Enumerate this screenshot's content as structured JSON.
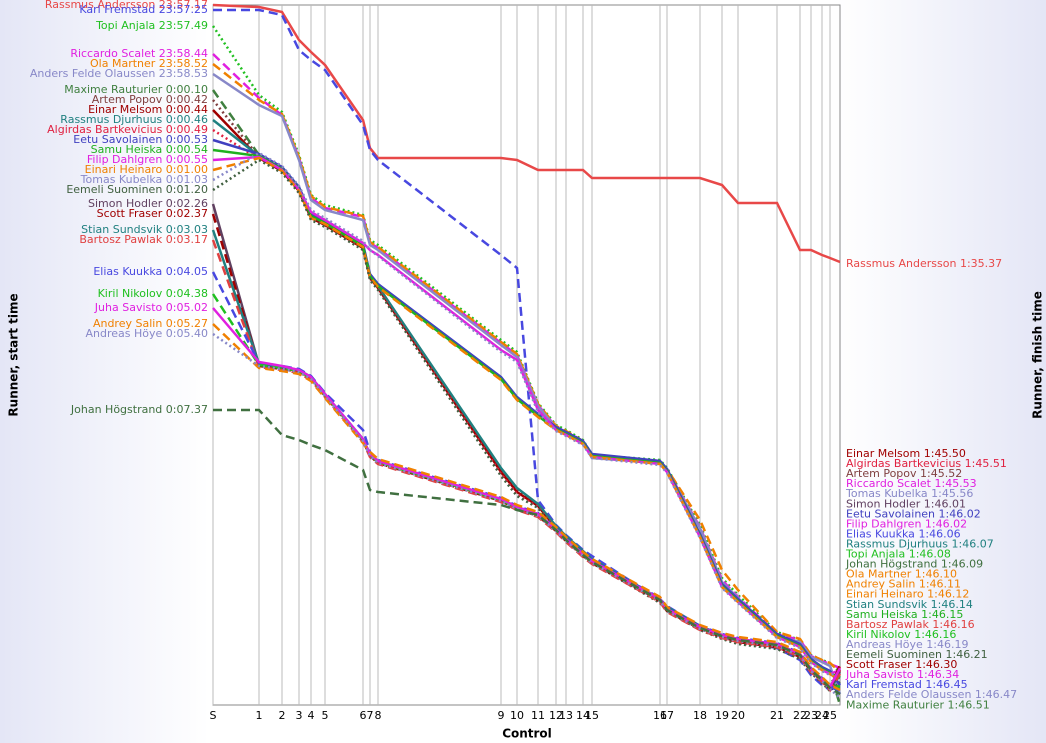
{
  "chart_data": {
    "type": "line",
    "x_label": "Control",
    "y_label": "Runner, start time",
    "y2_label": "Runner, finish time",
    "x": [
      0,
      46,
      69,
      86,
      98,
      112,
      150,
      157,
      165,
      288,
      304,
      325,
      343,
      353,
      370,
      379,
      447,
      454,
      487,
      509,
      525,
      564,
      587,
      598,
      609,
      617,
      627
    ],
    "xlim": [
      0,
      627
    ],
    "ylim": [
      705,
      5
    ],
    "grid": true,
    "xticks": [
      {
        "value": 0,
        "label": "S"
      },
      {
        "value": 46,
        "label": "1"
      },
      {
        "value": 69,
        "label": "2"
      },
      {
        "value": 86,
        "label": "3"
      },
      {
        "value": 98,
        "label": "4"
      },
      {
        "value": 112,
        "label": "5"
      },
      {
        "value": 150,
        "label": "6"
      },
      {
        "value": 157,
        "label": "7"
      },
      {
        "value": 165,
        "label": "8"
      },
      {
        "value": 288,
        "label": "9"
      },
      {
        "value": 304,
        "label": "10"
      },
      {
        "value": 325,
        "label": "11"
      },
      {
        "value": 343,
        "label": "12"
      },
      {
        "value": 353,
        "label": "13"
      },
      {
        "value": 370,
        "label": "14"
      },
      {
        "value": 379,
        "label": "15"
      },
      {
        "value": 447,
        "label": "16"
      },
      {
        "value": 454,
        "label": "17"
      },
      {
        "value": 487,
        "label": "18"
      },
      {
        "value": 509,
        "label": "19"
      },
      {
        "value": 525,
        "label": "20"
      },
      {
        "value": 564,
        "label": "21"
      },
      {
        "value": 587,
        "label": "22"
      },
      {
        "value": 598,
        "label": "23"
      },
      {
        "value": 609,
        "label": "24"
      },
      {
        "value": 617,
        "label": "25"
      }
    ],
    "series": [
      {
        "name": "Rassmus Andersson",
        "start_time": "23:57.17",
        "color": "#e84848",
        "style": "solid",
        "values": [
          5,
          7,
          12,
          40,
          52,
          65,
          120,
          148,
          158,
          158,
          160,
          170,
          170,
          170,
          170,
          178,
          178,
          178,
          178,
          185,
          203,
          203,
          250,
          250,
          255,
          258,
          262
        ]
      },
      {
        "name": "Karl Fremstad",
        "start_time": "23:57.25",
        "color": "#4848e0",
        "style": "dashed",
        "values": [
          10,
          10,
          15,
          50,
          60,
          70,
          125,
          150,
          160,
          255,
          268,
          500,
          525,
          535,
          550,
          556,
          600,
          606,
          626,
          636,
          641,
          648,
          660,
          675,
          685,
          690,
          684
        ]
      },
      {
        "name": "Topi Anjala",
        "start_time": "23:57.49",
        "color": "#22c022",
        "style": "dotted",
        "values": [
          26,
          95,
          112,
          155,
          195,
          205,
          215,
          240,
          245,
          340,
          352,
          403,
          425,
          430,
          440,
          455,
          460,
          468,
          525,
          578,
          595,
          632,
          640,
          655,
          660,
          663,
          672
        ]
      },
      {
        "name": "Riccardo Scalet",
        "start_time": "23:58.44",
        "color": "#e020e0",
        "style": "dashed",
        "values": [
          54,
          98,
          115,
          158,
          198,
          208,
          217,
          243,
          248,
          343,
          355,
          405,
          427,
          432,
          442,
          457,
          462,
          470,
          527,
          580,
          597,
          634,
          640,
          656,
          661,
          664,
          668
        ]
      },
      {
        "name": "Ola Martner",
        "start_time": "23:58.52",
        "color": "#f08000",
        "style": "dashed",
        "values": [
          64,
          100,
          114,
          157,
          196,
          207,
          216,
          242,
          247,
          342,
          354,
          404,
          426,
          431,
          441,
          455,
          461,
          469,
          520,
          570,
          590,
          632,
          639,
          655,
          660,
          663,
          672
        ]
      },
      {
        "name": "Anders Felde Olaussen",
        "start_time": "23:58.53",
        "color": "#8888c8",
        "style": "solid",
        "values": [
          74,
          105,
          116,
          160,
          200,
          210,
          220,
          245,
          250,
          345,
          357,
          406,
          428,
          433,
          443,
          458,
          463,
          471,
          528,
          582,
          598,
          636,
          642,
          657,
          662,
          666,
          694
        ]
      },
      {
        "name": "Maxime Rauturier",
        "start_time": "0:00.10",
        "color": "#408040",
        "style": "dashed",
        "values": [
          90,
          155,
          168,
          188,
          215,
          222,
          245,
          275,
          285,
          378,
          398,
          415,
          428,
          433,
          442,
          455,
          462,
          470,
          535,
          585,
          600,
          635,
          645,
          660,
          668,
          672,
          705
        ]
      },
      {
        "name": "Artem Popov",
        "start_time": "0:00.42",
        "color": "#804040",
        "style": "dotted",
        "values": [
          100,
          157,
          170,
          190,
          217,
          224,
          247,
          277,
          287,
          470,
          490,
          505,
          527,
          537,
          552,
          560,
          600,
          608,
          627,
          636,
          641,
          646,
          656,
          670,
          680,
          688,
          668
        ]
      },
      {
        "name": "Einar Melsom",
        "start_time": "0:00.44",
        "color": "#a00000",
        "style": "solid",
        "values": [
          110,
          158,
          171,
          191,
          218,
          225,
          248,
          278,
          288,
          472,
          492,
          506,
          528,
          538,
          553,
          561,
          601,
          609,
          628,
          637,
          642,
          647,
          657,
          671,
          681,
          689,
          670
        ]
      },
      {
        "name": "Rassmus Djurhuus",
        "start_time": "0:00.46",
        "color": "#208080",
        "style": "solid",
        "values": [
          120,
          156,
          169,
          189,
          216,
          223,
          246,
          276,
          286,
          468,
          488,
          504,
          526,
          536,
          551,
          559,
          599,
          607,
          626,
          635,
          640,
          645,
          655,
          669,
          679,
          687,
          676
        ]
      },
      {
        "name": "Algirdas Bartkevicius",
        "start_time": "0:00.49",
        "color": "#e02040",
        "style": "dotted",
        "values": [
          130,
          159,
          172,
          192,
          219,
          226,
          249,
          279,
          289,
          474,
          494,
          507,
          529,
          539,
          554,
          562,
          602,
          610,
          629,
          638,
          643,
          648,
          658,
          672,
          682,
          690,
          666
        ]
      },
      {
        "name": "Eetu Savolainen",
        "start_time": "0:00.53",
        "color": "#4040c0",
        "style": "solid",
        "values": [
          140,
          154,
          167,
          187,
          214,
          221,
          244,
          274,
          284,
          377,
          397,
          414,
          427,
          432,
          441,
          454,
          461,
          469,
          534,
          584,
          599,
          634,
          644,
          659,
          667,
          671,
          685
        ]
      },
      {
        "name": "Samu Heiska",
        "start_time": "0:00.54",
        "color": "#20b020",
        "style": "solid",
        "values": [
          150,
          156,
          169,
          189,
          216,
          223,
          246,
          276,
          286,
          379,
          399,
          416,
          429,
          434,
          443,
          456,
          463,
          471,
          536,
          586,
          601,
          636,
          646,
          661,
          669,
          673,
          678
        ]
      },
      {
        "name": "Filip Dahlgren",
        "start_time": "0:00.55",
        "color": "#e020e0",
        "style": "solid",
        "values": [
          160,
          157,
          170,
          190,
          212,
          220,
          243,
          250,
          255,
          350,
          360,
          410,
          430,
          435,
          444,
          457,
          464,
          472,
          537,
          587,
          602,
          637,
          647,
          662,
          670,
          674,
          670
        ]
      },
      {
        "name": "Einari Heinaro",
        "start_time": "0:01.00",
        "color": "#f08000",
        "style": "dashed",
        "values": [
          170,
          158,
          171,
          191,
          218,
          224,
          247,
          277,
          287,
          380,
          400,
          417,
          430,
          435,
          444,
          457,
          464,
          472,
          537,
          587,
          602,
          637,
          647,
          662,
          670,
          674,
          680
        ]
      },
      {
        "name": "Tomas Kubelka",
        "start_time": "0:01.03",
        "color": "#8888c8",
        "style": "dotted",
        "values": [
          180,
          153,
          166,
          186,
          210,
          218,
          241,
          250,
          256,
          352,
          362,
          412,
          431,
          436,
          445,
          458,
          465,
          473,
          538,
          588,
          603,
          638,
          648,
          663,
          671,
          675,
          672
        ]
      },
      {
        "name": "Eemeli Suominen",
        "start_time": "0:01.20",
        "color": "#406040",
        "style": "dotted",
        "values": [
          190,
          160,
          173,
          193,
          220,
          227,
          250,
          280,
          290,
          476,
          496,
          508,
          530,
          540,
          555,
          563,
          603,
          611,
          630,
          639,
          644,
          649,
          659,
          673,
          683,
          691,
          682
        ]
      },
      {
        "name": "Simon Hodler",
        "start_time": "0:02.26",
        "color": "#604060",
        "style": "solid",
        "values": [
          204,
          365,
          368,
          371,
          378,
          395,
          440,
          455,
          462,
          500,
          508,
          515,
          530,
          540,
          555,
          562,
          600,
          610,
          628,
          636,
          640,
          645,
          655,
          670,
          680,
          688,
          672
        ]
      },
      {
        "name": "Scott Fraser",
        "start_time": "0:02.37",
        "color": "#a00000",
        "style": "dashed",
        "values": [
          214,
          366,
          369,
          372,
          379,
          396,
          441,
          456,
          463,
          501,
          509,
          516,
          531,
          541,
          556,
          563,
          601,
          611,
          629,
          637,
          641,
          646,
          656,
          671,
          681,
          689,
          665
        ]
      },
      {
        "name": "Stian Sundsvik",
        "start_time": "0:03.03",
        "color": "#208080",
        "style": "solid",
        "values": [
          230,
          364,
          367,
          370,
          377,
          394,
          439,
          454,
          461,
          499,
          507,
          514,
          529,
          539,
          554,
          561,
          599,
          609,
          627,
          635,
          639,
          644,
          654,
          669,
          679,
          687,
          688
        ]
      },
      {
        "name": "Bartosz Pawlak",
        "start_time": "0:03.17",
        "color": "#e04040",
        "style": "dashed",
        "values": [
          240,
          367,
          370,
          373,
          380,
          397,
          442,
          457,
          464,
          502,
          510,
          517,
          532,
          542,
          557,
          564,
          602,
          612,
          630,
          638,
          642,
          647,
          657,
          672,
          682,
          690,
          674
        ]
      },
      {
        "name": "Elias Kuukka",
        "start_time": "0:04.05",
        "color": "#4848e0",
        "style": "dashed",
        "values": [
          272,
          363,
          366,
          369,
          376,
          393,
          430,
          452,
          460,
          498,
          506,
          513,
          528,
          538,
          553,
          560,
          598,
          608,
          626,
          634,
          638,
          643,
          653,
          668,
          678,
          686,
          692
        ]
      },
      {
        "name": "Kiril Nikolov",
        "start_time": "0:04.38",
        "color": "#20c020",
        "style": "dashed",
        "values": [
          294,
          365,
          368,
          371,
          378,
          395,
          440,
          455,
          462,
          500,
          508,
          515,
          530,
          540,
          555,
          562,
          600,
          610,
          628,
          636,
          640,
          645,
          655,
          670,
          680,
          688,
          686
        ]
      },
      {
        "name": "Juha Savisto",
        "start_time": "0:05.02",
        "color": "#e020e0",
        "style": "solid",
        "values": [
          308,
          362,
          366,
          370,
          377,
          394,
          439,
          454,
          461,
          499,
          507,
          514,
          529,
          539,
          554,
          561,
          599,
          609,
          627,
          635,
          639,
          644,
          654,
          669,
          679,
          687,
          668
        ]
      },
      {
        "name": "Andrey Salin",
        "start_time": "0:05.27",
        "color": "#f08000",
        "style": "dashed",
        "values": [
          324,
          368,
          371,
          374,
          381,
          398,
          443,
          452,
          459,
          497,
          505,
          512,
          527,
          537,
          552,
          559,
          597,
          607,
          625,
          633,
          637,
          642,
          652,
          667,
          677,
          685,
          690
        ]
      },
      {
        "name": "Andreas Höye",
        "start_time": "0:05.40",
        "color": "#8888c8",
        "style": "dotted",
        "values": [
          334,
          366,
          369,
          372,
          379,
          396,
          441,
          456,
          463,
          501,
          509,
          516,
          531,
          541,
          556,
          563,
          601,
          611,
          629,
          637,
          641,
          646,
          656,
          671,
          681,
          689,
          698
        ]
      },
      {
        "name": "Johan Högstrand",
        "start_time": "0:07.37",
        "color": "#407040",
        "style": "dashed",
        "values": [
          410,
          410,
          435,
          440,
          445,
          450,
          470,
          490,
          492,
          505,
          510,
          515,
          530,
          540,
          555,
          562,
          600,
          610,
          628,
          636,
          640,
          645,
          655,
          670,
          680,
          688,
          694
        ]
      }
    ],
    "finish_labels": [
      {
        "name": "Rassmus Andersson",
        "time": "1:35.37"
      },
      {
        "name": "Einar Melsom",
        "time": "1:45.50"
      },
      {
        "name": "Algirdas Bartkevicius",
        "time": "1:45.51"
      },
      {
        "name": "Artem Popov",
        "time": "1:45.52"
      },
      {
        "name": "Riccardo Scalet",
        "time": "1:45.53"
      },
      {
        "name": "Tomas Kubelka",
        "time": "1:45.56"
      },
      {
        "name": "Simon Hodler",
        "time": "1:46.01"
      },
      {
        "name": "Eetu Savolainen",
        "time": "1:46.02"
      },
      {
        "name": "Filip Dahlgren",
        "time": "1:46.02"
      },
      {
        "name": "Elias Kuukka",
        "time": "1:46.06"
      },
      {
        "name": "Rassmus Djurhuus",
        "time": "1:46.07"
      },
      {
        "name": "Topi Anjala",
        "time": "1:46.08"
      },
      {
        "name": "Johan Högstrand",
        "time": "1:46.09"
      },
      {
        "name": "Ola Martner",
        "time": "1:46.10"
      },
      {
        "name": "Andrey Salin",
        "time": "1:46.11"
      },
      {
        "name": "Einari Heinaro",
        "time": "1:46.12"
      },
      {
        "name": "Stian Sundsvik",
        "time": "1:46.14"
      },
      {
        "name": "Samu Heiska",
        "time": "1:46.15"
      },
      {
        "name": "Bartosz Pawlak",
        "time": "1:46.16"
      },
      {
        "name": "Kiril Nikolov",
        "time": "1:46.16"
      },
      {
        "name": "Andreas Höye",
        "time": "1:46.19"
      },
      {
        "name": "Eemeli Suominen",
        "time": "1:46.21"
      },
      {
        "name": "Scott Fraser",
        "time": "1:46.30"
      },
      {
        "name": "Juha Savisto",
        "time": "1:46.34"
      },
      {
        "name": "Karl Fremstad",
        "time": "1:46.45"
      },
      {
        "name": "Anders Felde Olaussen",
        "time": "1:46.47"
      },
      {
        "name": "Maxime Rauturier",
        "time": "1:46.51"
      }
    ]
  }
}
